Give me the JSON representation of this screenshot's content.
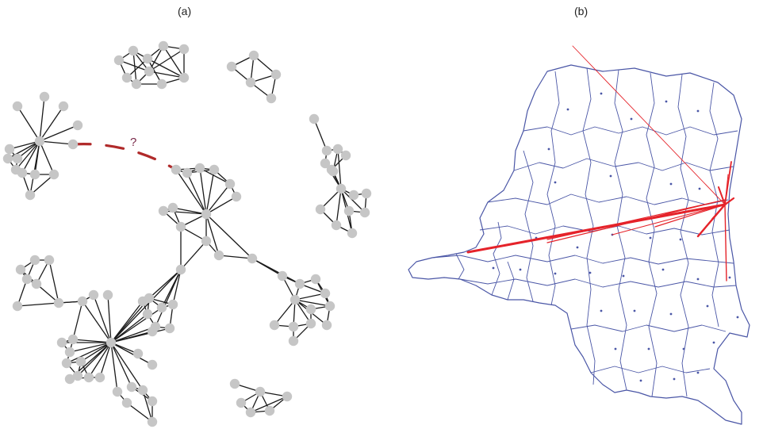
{
  "panels": {
    "a": {
      "label": "(a)",
      "missing_link_label": "?"
    },
    "b": {
      "label": "(b)"
    }
  },
  "colors": {
    "node": "#c6c6c6",
    "edge": "#1a1a1a",
    "missing_link": "#b02a2a",
    "map_border": "#4a56a6",
    "flow": "#e5232a"
  }
}
